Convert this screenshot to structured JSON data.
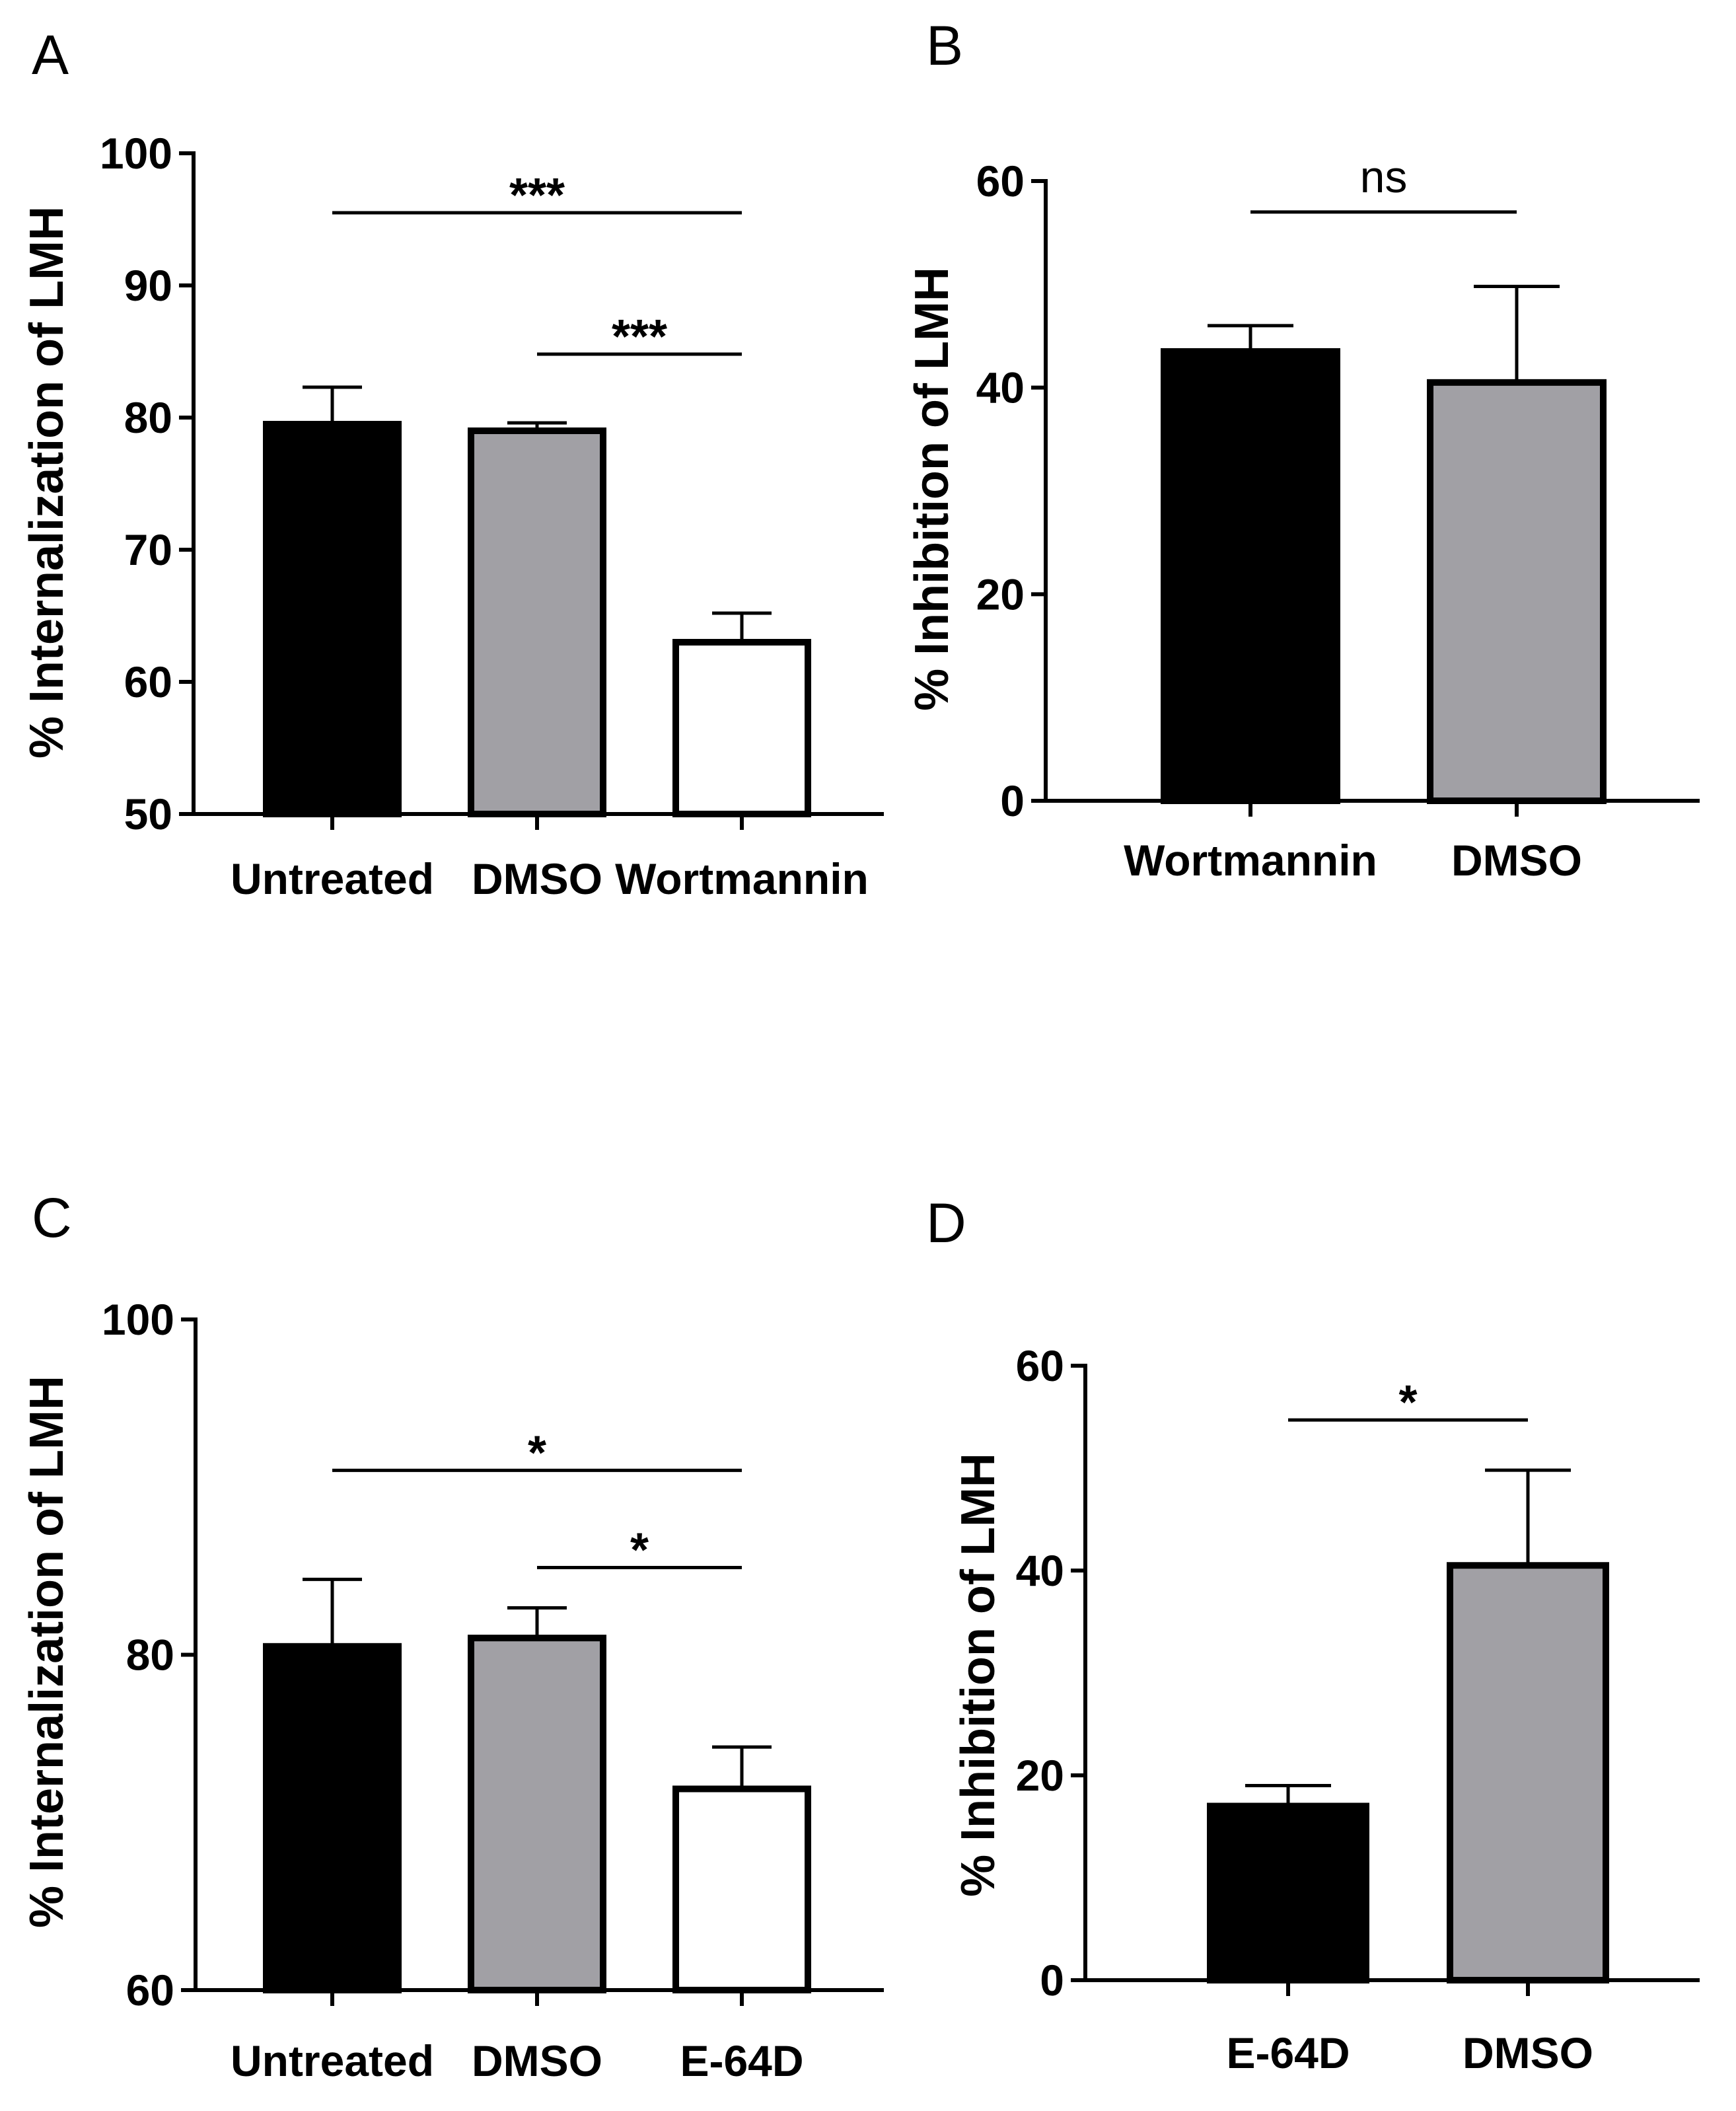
{
  "colors": {
    "black": "#000000",
    "gray": "#a1a0a5",
    "white": "#ffffff"
  },
  "chart_data": [
    {
      "panel": "A",
      "type": "bar",
      "ylabel": "% Internalization of LMH",
      "ylim": [
        50,
        100
      ],
      "yticks": [
        50,
        60,
        70,
        80,
        90,
        100
      ],
      "ytick_labels": [
        "50",
        "60",
        "70",
        "80",
        "90",
        "100"
      ],
      "categories": [
        "Untreated",
        "DMSO",
        "Wortmannin"
      ],
      "values": [
        79.5,
        79.0,
        63.0
      ],
      "errors": [
        2.8,
        0.6,
        2.2
      ],
      "fills": [
        "black",
        "gray",
        "white"
      ],
      "significance": [
        {
          "from": 0,
          "to": 2,
          "label": "***",
          "y": 95.5
        },
        {
          "from": 1,
          "to": 2,
          "label": "***",
          "y": 84.8
        }
      ]
    },
    {
      "panel": "B",
      "type": "bar",
      "ylabel": "% Inhibition of LMH",
      "ylim": [
        0,
        60
      ],
      "yticks": [
        0,
        20,
        40,
        60
      ],
      "ytick_labels": [
        "0",
        "20",
        "40",
        "60"
      ],
      "categories": [
        "Wortmannin",
        "DMSO"
      ],
      "values": [
        43.5,
        40.5
      ],
      "errors": [
        2.5,
        9.3
      ],
      "fills": [
        "black",
        "gray"
      ],
      "significance": [
        {
          "from": 0,
          "to": 1,
          "label": "ns",
          "y": 57.0
        }
      ]
    },
    {
      "panel": "C",
      "type": "bar",
      "ylabel": "% Internalization of LMH",
      "ylim": [
        60,
        100
      ],
      "yticks": [
        60,
        80,
        100
      ],
      "ytick_labels": [
        "60",
        "80",
        "100"
      ],
      "categories": [
        "Untreated",
        "DMSO",
        "E-64D"
      ],
      "values": [
        80.5,
        81.0,
        72.0
      ],
      "errors": [
        4.0,
        1.8,
        2.5
      ],
      "fills": [
        "black",
        "gray",
        "white"
      ],
      "significance": [
        {
          "from": 0,
          "to": 2,
          "label": "*",
          "y": 91.0
        },
        {
          "from": 1,
          "to": 2,
          "label": "*",
          "y": 85.2
        }
      ]
    },
    {
      "panel": "D",
      "type": "bar",
      "ylabel": "% Inhibition of LMH",
      "ylim": [
        0,
        60
      ],
      "yticks": [
        0,
        20,
        40,
        60
      ],
      "ytick_labels": [
        "0",
        "20",
        "40",
        "60"
      ],
      "categories": [
        "E-64D",
        "DMSO"
      ],
      "values": [
        17.0,
        40.5
      ],
      "errors": [
        2.0,
        9.3
      ],
      "fills": [
        "black",
        "gray"
      ],
      "significance": [
        {
          "from": 0,
          "to": 1,
          "label": "*",
          "y": 54.7
        }
      ]
    }
  ]
}
